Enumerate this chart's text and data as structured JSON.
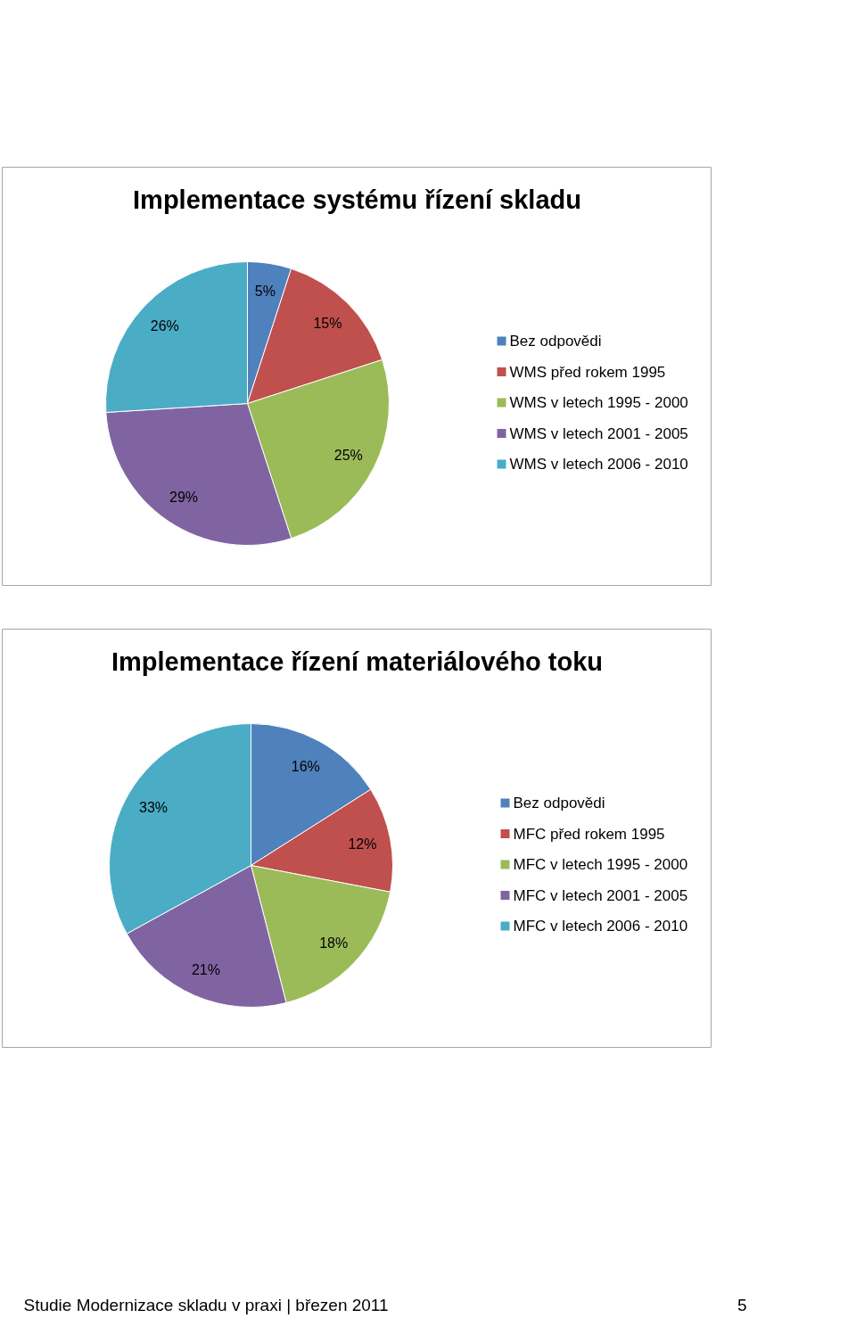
{
  "chart_data": [
    {
      "type": "pie",
      "title": "Implementace systému řízení skladu",
      "categories": [
        "Bez odpovědi",
        "WMS před rokem 1995",
        "WMS v letech 1995 - 2000",
        "WMS v letech 2001 - 2005",
        "WMS v letech 2006 - 2010"
      ],
      "values": [
        5,
        15,
        25,
        29,
        26
      ],
      "value_labels": [
        "5%",
        "15%",
        "25%",
        "29%",
        "26%"
      ],
      "colors": [
        "#4f81bd",
        "#c0504d",
        "#9bbb59",
        "#8064a2",
        "#4bacc6"
      ],
      "legend": "right"
    },
    {
      "type": "pie",
      "title": "Implementace řízení materiálového toku",
      "categories": [
        "Bez odpovědi",
        "MFC před rokem 1995",
        "MFC v letech 1995 - 2000",
        "MFC v letech 2001 - 2005",
        "MFC v letech 2006 - 2010"
      ],
      "values": [
        16,
        12,
        18,
        21,
        33
      ],
      "value_labels": [
        "16%",
        "12%",
        "18%",
        "21%",
        "33%"
      ],
      "colors": [
        "#4f81bd",
        "#c0504d",
        "#9bbb59",
        "#8064a2",
        "#4bacc6"
      ],
      "legend": "right",
      "annotations": [
        "Studie Modernizace skladu v praxi | březen 2011",
        "5"
      ]
    }
  ]
}
